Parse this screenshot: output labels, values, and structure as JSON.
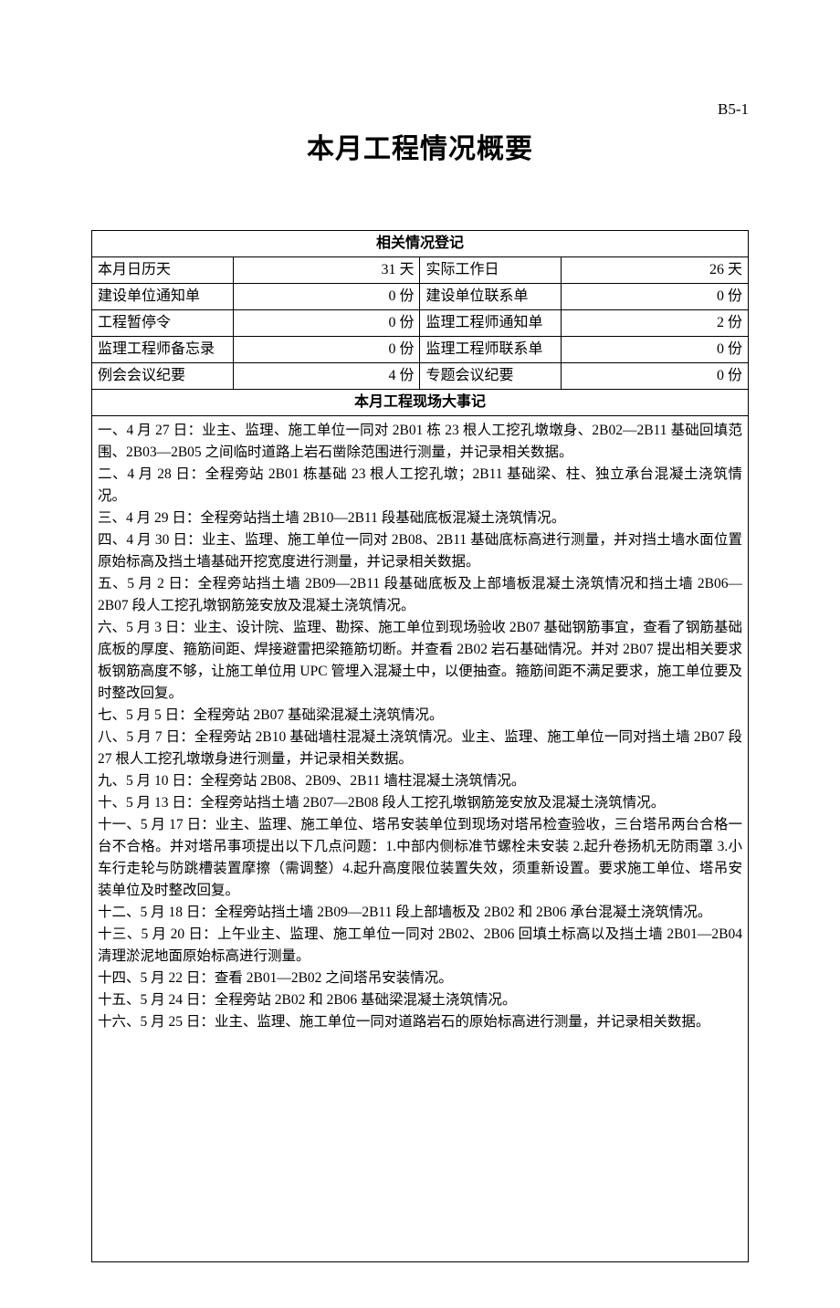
{
  "doc_code": "B5-1",
  "title": "本月工程情况概要",
  "register": {
    "header": "相关情况登记",
    "rows": [
      {
        "label1": "本月日历天",
        "value1": "31 天",
        "label2": "实际工作日",
        "value2": "26 天"
      },
      {
        "label1": "建设单位通知单",
        "value1": "0 份",
        "label2": "建设单位联系单",
        "value2": "0 份"
      },
      {
        "label1": "工程暂停令",
        "value1": "0 份",
        "label2": "监理工程师通知单",
        "value2": "2 份"
      },
      {
        "label1": "监理工程师备忘录",
        "value1": "0 份",
        "label2": "监理工程师联系单",
        "value2": "0 份"
      },
      {
        "label1": "例会会议纪要",
        "value1": "4 份",
        "label2": "专题会议纪要",
        "value2": "0 份"
      }
    ]
  },
  "events": {
    "header": "本月工程现场大事记",
    "items": [
      "一、4 月 27 日：业主、监理、施工单位一同对 2B01 栋 23 根人工挖孔墩墩身、2B02—2B11 基础回填范围、2B03—2B05 之间临时道路上岩石凿除范围进行测量，并记录相关数据。",
      "二、4 月 28 日：全程旁站 2B01 栋基础 23 根人工挖孔墩；2B11 基础梁、柱、独立承台混凝土浇筑情况。",
      "三、4 月 29 日：全程旁站挡土墙 2B10—2B11 段基础底板混凝土浇筑情况。",
      "四、4 月 30 日：业主、监理、施工单位一同对 2B08、2B11 基础底标高进行测量，并对挡土墙水面位置原始标高及挡土墙基础开挖宽度进行测量，并记录相关数据。",
      "五、5 月 2 日：全程旁站挡土墙 2B09—2B11 段基础底板及上部墙板混凝土浇筑情况和挡土墙 2B06—2B07 段人工挖孔墩钢筋笼安放及混凝土浇筑情况。",
      "六、5 月 3 日：业主、设计院、监理、勘探、施工单位到现场验收 2B07 基础钢筋事宜，查看了钢筋基础底板的厚度、箍筋间距、焊接避雷把梁箍筋切断。并查看 2B02 岩石基础情况。并对 2B07 提出相关要求 板钢筋高度不够，让施工单位用 UPC 管埋入混凝土中，以便抽查。箍筋间距不满足要求，施工单位要及时整改回复。",
      "七、5 月 5 日：全程旁站 2B07 基础梁混凝土浇筑情况。",
      "八、5 月 7 日：全程旁站 2B10 基础墙柱混凝土浇筑情况。业主、监理、施工单位一同对挡土墙 2B07 段 27 根人工挖孔墩墩身进行测量，并记录相关数据。",
      "九、5 月 10 日：全程旁站 2B08、2B09、2B11 墙柱混凝土浇筑情况。",
      "十、5 月 13 日：全程旁站挡土墙 2B07—2B08 段人工挖孔墩钢筋笼安放及混凝土浇筑情况。",
      "十一、5 月 17 日：业主、监理、施工单位、塔吊安装单位到现场对塔吊检查验收，三台塔吊两台合格一台不合格。并对塔吊事项提出以下几点问题：1.中部内侧标准节螺栓未安装 2.起升卷扬机无防雨罩 3.小车行走轮与防跳槽装置摩擦（需调整）4.起升高度限位装置失效，须重新设置。要求施工单位、塔吊安装单位及时整改回复。",
      "十二、5 月 18 日：全程旁站挡土墙 2B09—2B11 段上部墙板及 2B02 和 2B06 承台混凝土浇筑情况。",
      "十三、5 月 20 日：上午业主、监理、施工单位一同对 2B02、2B06 回填土标高以及挡土墙 2B01—2B04 清理淤泥地面原始标高进行测量。",
      "十四、5 月 22 日：查看 2B01—2B02 之间塔吊安装情况。",
      "十五、5 月 24 日：全程旁站 2B02 和 2B06 基础梁混凝土浇筑情况。",
      "十六、5 月 25 日：业主、监理、施工单位一同对道路岩石的原始标高进行测量，并记录相关数据。"
    ]
  }
}
